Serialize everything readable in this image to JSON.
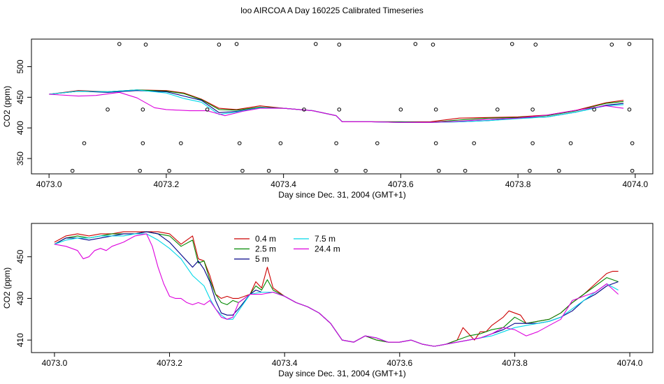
{
  "title": "loo AIRCOA A  Day 160225  Calibrated Timeseries",
  "colors": {
    "0.4 m": "#cc0000",
    "2.5 m": "#008800",
    "5 m": "#000088",
    "7.5 m": "#00d8e8",
    "24.4 m": "#dd00dd",
    "points": "#000000"
  },
  "chart_data": [
    {
      "type": "line",
      "panel": "top",
      "xlabel": "Day since Dec. 31, 2004 (GMT+1)",
      "ylabel": "CO2 (ppm)",
      "xlim": [
        4072.97,
        4074.03
      ],
      "ylim": [
        325,
        545
      ],
      "xticks": [
        4073.0,
        4073.2,
        4073.4,
        4073.6,
        4073.8,
        4074.0
      ],
      "xtick_labels": [
        "4073.0",
        "4073.2",
        "4073.4",
        "4073.6",
        "4073.8",
        "4074.0"
      ],
      "yticks": [
        350,
        400,
        450,
        500
      ],
      "ytick_labels": [
        "350",
        "400",
        "450",
        "500"
      ],
      "series": [
        {
          "name": "0.4 m",
          "x": [
            4073.0,
            4073.05,
            4073.1,
            4073.15,
            4073.2,
            4073.23,
            4073.26,
            4073.29,
            4073.32,
            4073.36,
            4073.4,
            4073.45,
            4073.49,
            4073.5,
            4073.55,
            4073.6,
            4073.65,
            4073.7,
            4073.75,
            4073.8,
            4073.85,
            4073.9,
            4073.95,
            4073.98
          ],
          "y": [
            455,
            461,
            459,
            462,
            461,
            457,
            447,
            432,
            430,
            436,
            432,
            428,
            420,
            410,
            410,
            410,
            410,
            416,
            417,
            418,
            421,
            429,
            441,
            445
          ]
        },
        {
          "name": "2.5 m",
          "x": [
            4073.0,
            4073.05,
            4073.1,
            4073.15,
            4073.2,
            4073.23,
            4073.26,
            4073.29,
            4073.32,
            4073.36,
            4073.4,
            4073.45,
            4073.49,
            4073.5,
            4073.55,
            4073.6,
            4073.65,
            4073.7,
            4073.75,
            4073.8,
            4073.85,
            4073.9,
            4073.95,
            4073.98
          ],
          "y": [
            455,
            460,
            459,
            462,
            460,
            456,
            446,
            430,
            429,
            434,
            432,
            428,
            420,
            410,
            410,
            410,
            409,
            413,
            416,
            417,
            420,
            428,
            440,
            443
          ]
        },
        {
          "name": "5 m",
          "x": [
            4073.0,
            4073.05,
            4073.1,
            4073.15,
            4073.2,
            4073.23,
            4073.26,
            4073.29,
            4073.32,
            4073.36,
            4073.4,
            4073.45,
            4073.49,
            4073.5,
            4073.55,
            4073.6,
            4073.65,
            4073.7,
            4073.75,
            4073.8,
            4073.85,
            4073.9,
            4073.95,
            4073.98
          ],
          "y": [
            455,
            460,
            458,
            461,
            459,
            452,
            445,
            425,
            427,
            433,
            432,
            428,
            420,
            410,
            410,
            409,
            409,
            410,
            412,
            416,
            418,
            426,
            437,
            440
          ]
        },
        {
          "name": "7.5 m",
          "x": [
            4073.0,
            4073.05,
            4073.1,
            4073.15,
            4073.2,
            4073.23,
            4073.26,
            4073.29,
            4073.32,
            4073.36,
            4073.4,
            4073.45,
            4073.49,
            4073.5,
            4073.55,
            4073.6,
            4073.65,
            4073.7,
            4073.75,
            4073.8,
            4073.85,
            4073.9,
            4073.95,
            4073.98
          ],
          "y": [
            455,
            460,
            459,
            462,
            457,
            448,
            442,
            422,
            426,
            433,
            432,
            428,
            420,
            410,
            410,
            409,
            409,
            410,
            412,
            415,
            418,
            426,
            436,
            438
          ]
        },
        {
          "name": "24.4 m",
          "x": [
            4073.0,
            4073.05,
            4073.08,
            4073.12,
            4073.15,
            4073.18,
            4073.2,
            4073.24,
            4073.27,
            4073.3,
            4073.33,
            4073.36,
            4073.4,
            4073.45,
            4073.49,
            4073.5,
            4073.55,
            4073.6,
            4073.65,
            4073.7,
            4073.75,
            4073.8,
            4073.85,
            4073.9,
            4073.95,
            4073.98
          ],
          "y": [
            455,
            452,
            453,
            458,
            449,
            433,
            430,
            428,
            428,
            420,
            427,
            432,
            432,
            428,
            420,
            410,
            410,
            409,
            409,
            411,
            414,
            416,
            421,
            429,
            436,
            432
          ]
        }
      ],
      "points": {
        "x": [
          4073.04,
          4073.06,
          4073.1,
          4073.12,
          4073.155,
          4073.16,
          4073.16,
          4073.165,
          4073.205,
          4073.225,
          4073.27,
          4073.29,
          4073.32,
          4073.325,
          4073.33,
          4073.375,
          4073.395,
          4073.435,
          4073.455,
          4073.49,
          4073.49,
          4073.495,
          4073.495,
          4073.54,
          4073.56,
          4073.6,
          4073.625,
          4073.655,
          4073.66,
          4073.66,
          4073.665,
          4073.71,
          4073.725,
          4073.765,
          4073.79,
          4073.82,
          4073.825,
          4073.825,
          4073.83,
          4073.87,
          4073.89,
          4073.93,
          4073.96,
          4073.99,
          4073.99,
          4073.995,
          4073.995
        ],
        "y": [
          330,
          375,
          430,
          537,
          330,
          375,
          430,
          536,
          330,
          375,
          430,
          536,
          537,
          375,
          330,
          330,
          375,
          430,
          537,
          330,
          375,
          430,
          536,
          330,
          375,
          430,
          537,
          536,
          430,
          375,
          330,
          330,
          375,
          430,
          537,
          330,
          375,
          430,
          536,
          330,
          375,
          430,
          536,
          537,
          430,
          375,
          330
        ]
      }
    },
    {
      "type": "line",
      "panel": "bottom",
      "xlabel": "Day since Dec. 31, 2004 (GMT+1)",
      "ylabel": "CO2 (ppm)",
      "xlim": [
        4072.96,
        4074.04
      ],
      "ylim": [
        404,
        466
      ],
      "xticks": [
        4073.0,
        4073.2,
        4073.4,
        4073.6,
        4073.8,
        4074.0
      ],
      "xtick_labels": [
        "4073.0",
        "4073.2",
        "4073.4",
        "4073.6",
        "4073.8",
        "4074.0"
      ],
      "yticks": [
        410,
        430,
        450
      ],
      "ytick_labels": [
        "410",
        "430",
        "450"
      ],
      "legend": {
        "entries": [
          "0.4 m",
          "2.5 m",
          "5 m",
          "7.5 m",
          "24.4 m"
        ],
        "position": "top-left"
      },
      "series": [
        {
          "name": "0.4 m",
          "x": [
            4073.0,
            4073.02,
            4073.04,
            4073.06,
            4073.08,
            4073.1,
            4073.12,
            4073.14,
            4073.16,
            4073.18,
            4073.2,
            4073.22,
            4073.24,
            4073.25,
            4073.26,
            4073.27,
            4073.28,
            4073.29,
            4073.3,
            4073.31,
            4073.32,
            4073.34,
            4073.35,
            4073.36,
            4073.37,
            4073.38,
            4073.4,
            4073.42,
            4073.44,
            4073.46,
            4073.48,
            4073.5,
            4073.52,
            4073.54,
            4073.56,
            4073.58,
            4073.6,
            4073.62,
            4073.64,
            4073.66,
            4073.68,
            4073.7,
            4073.71,
            4073.72,
            4073.73,
            4073.74,
            4073.75,
            4073.76,
            4073.78,
            4073.79,
            4073.8,
            4073.81,
            4073.82,
            4073.84,
            4073.86,
            4073.88,
            4073.9,
            4073.92,
            4073.94,
            4073.96,
            4073.97,
            4073.98
          ],
          "y": [
            457,
            460,
            461,
            460,
            461,
            461,
            462,
            462,
            462,
            462,
            461,
            456,
            460,
            449,
            448,
            441,
            432,
            430,
            431,
            430,
            430,
            432,
            438,
            435,
            445,
            435,
            431,
            428,
            426,
            423,
            418,
            410,
            409,
            412,
            410,
            409,
            409,
            410,
            408,
            407,
            408,
            410,
            416,
            413,
            410,
            414,
            414,
            417,
            421,
            424,
            423,
            422,
            418,
            419,
            420,
            423,
            428,
            432,
            437,
            442,
            443,
            443
          ]
        },
        {
          "name": "2.5 m",
          "x": [
            4073.0,
            4073.02,
            4073.04,
            4073.06,
            4073.08,
            4073.1,
            4073.12,
            4073.14,
            4073.16,
            4073.18,
            4073.2,
            4073.22,
            4073.24,
            4073.25,
            4073.26,
            4073.27,
            4073.28,
            4073.29,
            4073.3,
            4073.31,
            4073.32,
            4073.34,
            4073.35,
            4073.36,
            4073.37,
            4073.38,
            4073.4,
            4073.42,
            4073.44,
            4073.46,
            4073.48,
            4073.5,
            4073.52,
            4073.54,
            4073.56,
            4073.58,
            4073.6,
            4073.62,
            4073.64,
            4073.66,
            4073.68,
            4073.7,
            4073.72,
            4073.74,
            4073.76,
            4073.78,
            4073.8,
            4073.82,
            4073.84,
            4073.86,
            4073.88,
            4073.9,
            4073.92,
            4073.94,
            4073.96,
            4073.98
          ],
          "y": [
            456,
            459,
            460,
            459,
            460,
            461,
            461,
            461,
            462,
            461,
            460,
            455,
            458,
            447,
            448,
            439,
            432,
            428,
            427,
            429,
            428,
            432,
            436,
            434,
            439,
            434,
            431,
            428,
            426,
            423,
            418,
            410,
            409,
            412,
            410,
            409,
            409,
            410,
            408,
            407,
            408,
            410,
            412,
            413,
            415,
            416,
            421,
            418,
            419,
            420,
            423,
            428,
            432,
            436,
            440,
            438
          ]
        },
        {
          "name": "5 m",
          "x": [
            4073.0,
            4073.02,
            4073.04,
            4073.06,
            4073.08,
            4073.1,
            4073.12,
            4073.14,
            4073.16,
            4073.18,
            4073.2,
            4073.22,
            4073.24,
            4073.25,
            4073.26,
            4073.27,
            4073.28,
            4073.29,
            4073.3,
            4073.31,
            4073.32,
            4073.34,
            4073.35,
            4073.36,
            4073.38,
            4073.4,
            4073.42,
            4073.44,
            4073.46,
            4073.48,
            4073.5,
            4073.52,
            4073.54,
            4073.56,
            4073.58,
            4073.6,
            4073.62,
            4073.64,
            4073.66,
            4073.68,
            4073.7,
            4073.72,
            4073.74,
            4073.76,
            4073.78,
            4073.8,
            4073.82,
            4073.84,
            4073.86,
            4073.88,
            4073.9,
            4073.92,
            4073.94,
            4073.96,
            4073.98
          ],
          "y": [
            456,
            459,
            459,
            458,
            459,
            460,
            461,
            461,
            462,
            461,
            457,
            451,
            445,
            448,
            444,
            438,
            429,
            423,
            422,
            422,
            425,
            432,
            434,
            433,
            433,
            431,
            428,
            426,
            423,
            418,
            410,
            409,
            412,
            411,
            409,
            409,
            410,
            408,
            407,
            408,
            409,
            410,
            411,
            413,
            415,
            418,
            418,
            418,
            419,
            421,
            424,
            429,
            432,
            436,
            438
          ]
        },
        {
          "name": "7.5 m",
          "x": [
            4073.0,
            4073.02,
            4073.04,
            4073.06,
            4073.08,
            4073.1,
            4073.12,
            4073.14,
            4073.16,
            4073.18,
            4073.2,
            4073.22,
            4073.24,
            4073.26,
            4073.27,
            4073.28,
            4073.29,
            4073.3,
            4073.31,
            4073.32,
            4073.34,
            4073.36,
            4073.38,
            4073.4,
            4073.42,
            4073.44,
            4073.46,
            4073.48,
            4073.5,
            4073.52,
            4073.54,
            4073.56,
            4073.58,
            4073.6,
            4073.62,
            4073.64,
            4073.66,
            4073.68,
            4073.7,
            4073.72,
            4073.74,
            4073.76,
            4073.78,
            4073.8,
            4073.82,
            4073.84,
            4073.86,
            4073.88,
            4073.9,
            4073.92,
            4073.94,
            4073.96,
            4073.98
          ],
          "y": [
            456,
            458,
            459,
            459,
            460,
            460,
            460,
            461,
            461,
            458,
            454,
            449,
            441,
            436,
            430,
            425,
            422,
            420,
            420,
            424,
            432,
            433,
            433,
            431,
            428,
            426,
            423,
            418,
            410,
            409,
            412,
            411,
            409,
            409,
            410,
            408,
            407,
            408,
            409,
            410,
            411,
            412,
            414,
            416,
            417,
            418,
            419,
            421,
            425,
            429,
            433,
            437,
            434
          ]
        },
        {
          "name": "24.4 m",
          "x": [
            4073.0,
            4073.02,
            4073.04,
            4073.05,
            4073.06,
            4073.07,
            4073.08,
            4073.09,
            4073.1,
            4073.12,
            4073.14,
            4073.16,
            4073.17,
            4073.18,
            4073.19,
            4073.2,
            4073.21,
            4073.22,
            4073.23,
            4073.24,
            4073.25,
            4073.26,
            4073.27,
            4073.28,
            4073.29,
            4073.3,
            4073.31,
            4073.32,
            4073.34,
            4073.36,
            4073.38,
            4073.4,
            4073.42,
            4073.44,
            4073.46,
            4073.48,
            4073.5,
            4073.52,
            4073.54,
            4073.56,
            4073.58,
            4073.6,
            4073.62,
            4073.64,
            4073.66,
            4073.68,
            4073.7,
            4073.72,
            4073.74,
            4073.76,
            4073.78,
            4073.8,
            4073.82,
            4073.84,
            4073.86,
            4073.88,
            4073.9,
            4073.92,
            4073.94,
            4073.96,
            4073.98
          ],
          "y": [
            456,
            455,
            453,
            449,
            450,
            453,
            454,
            453,
            455,
            457,
            460,
            461,
            455,
            445,
            437,
            431,
            430,
            430,
            428,
            427,
            428,
            427,
            429,
            425,
            421,
            420,
            421,
            428,
            432,
            432,
            433,
            431,
            428,
            426,
            423,
            418,
            410,
            409,
            412,
            411,
            409,
            409,
            410,
            408,
            407,
            408,
            409,
            410,
            411,
            413,
            416,
            415,
            412,
            414,
            417,
            420,
            429,
            431,
            433,
            437,
            432
          ]
        }
      ]
    }
  ]
}
